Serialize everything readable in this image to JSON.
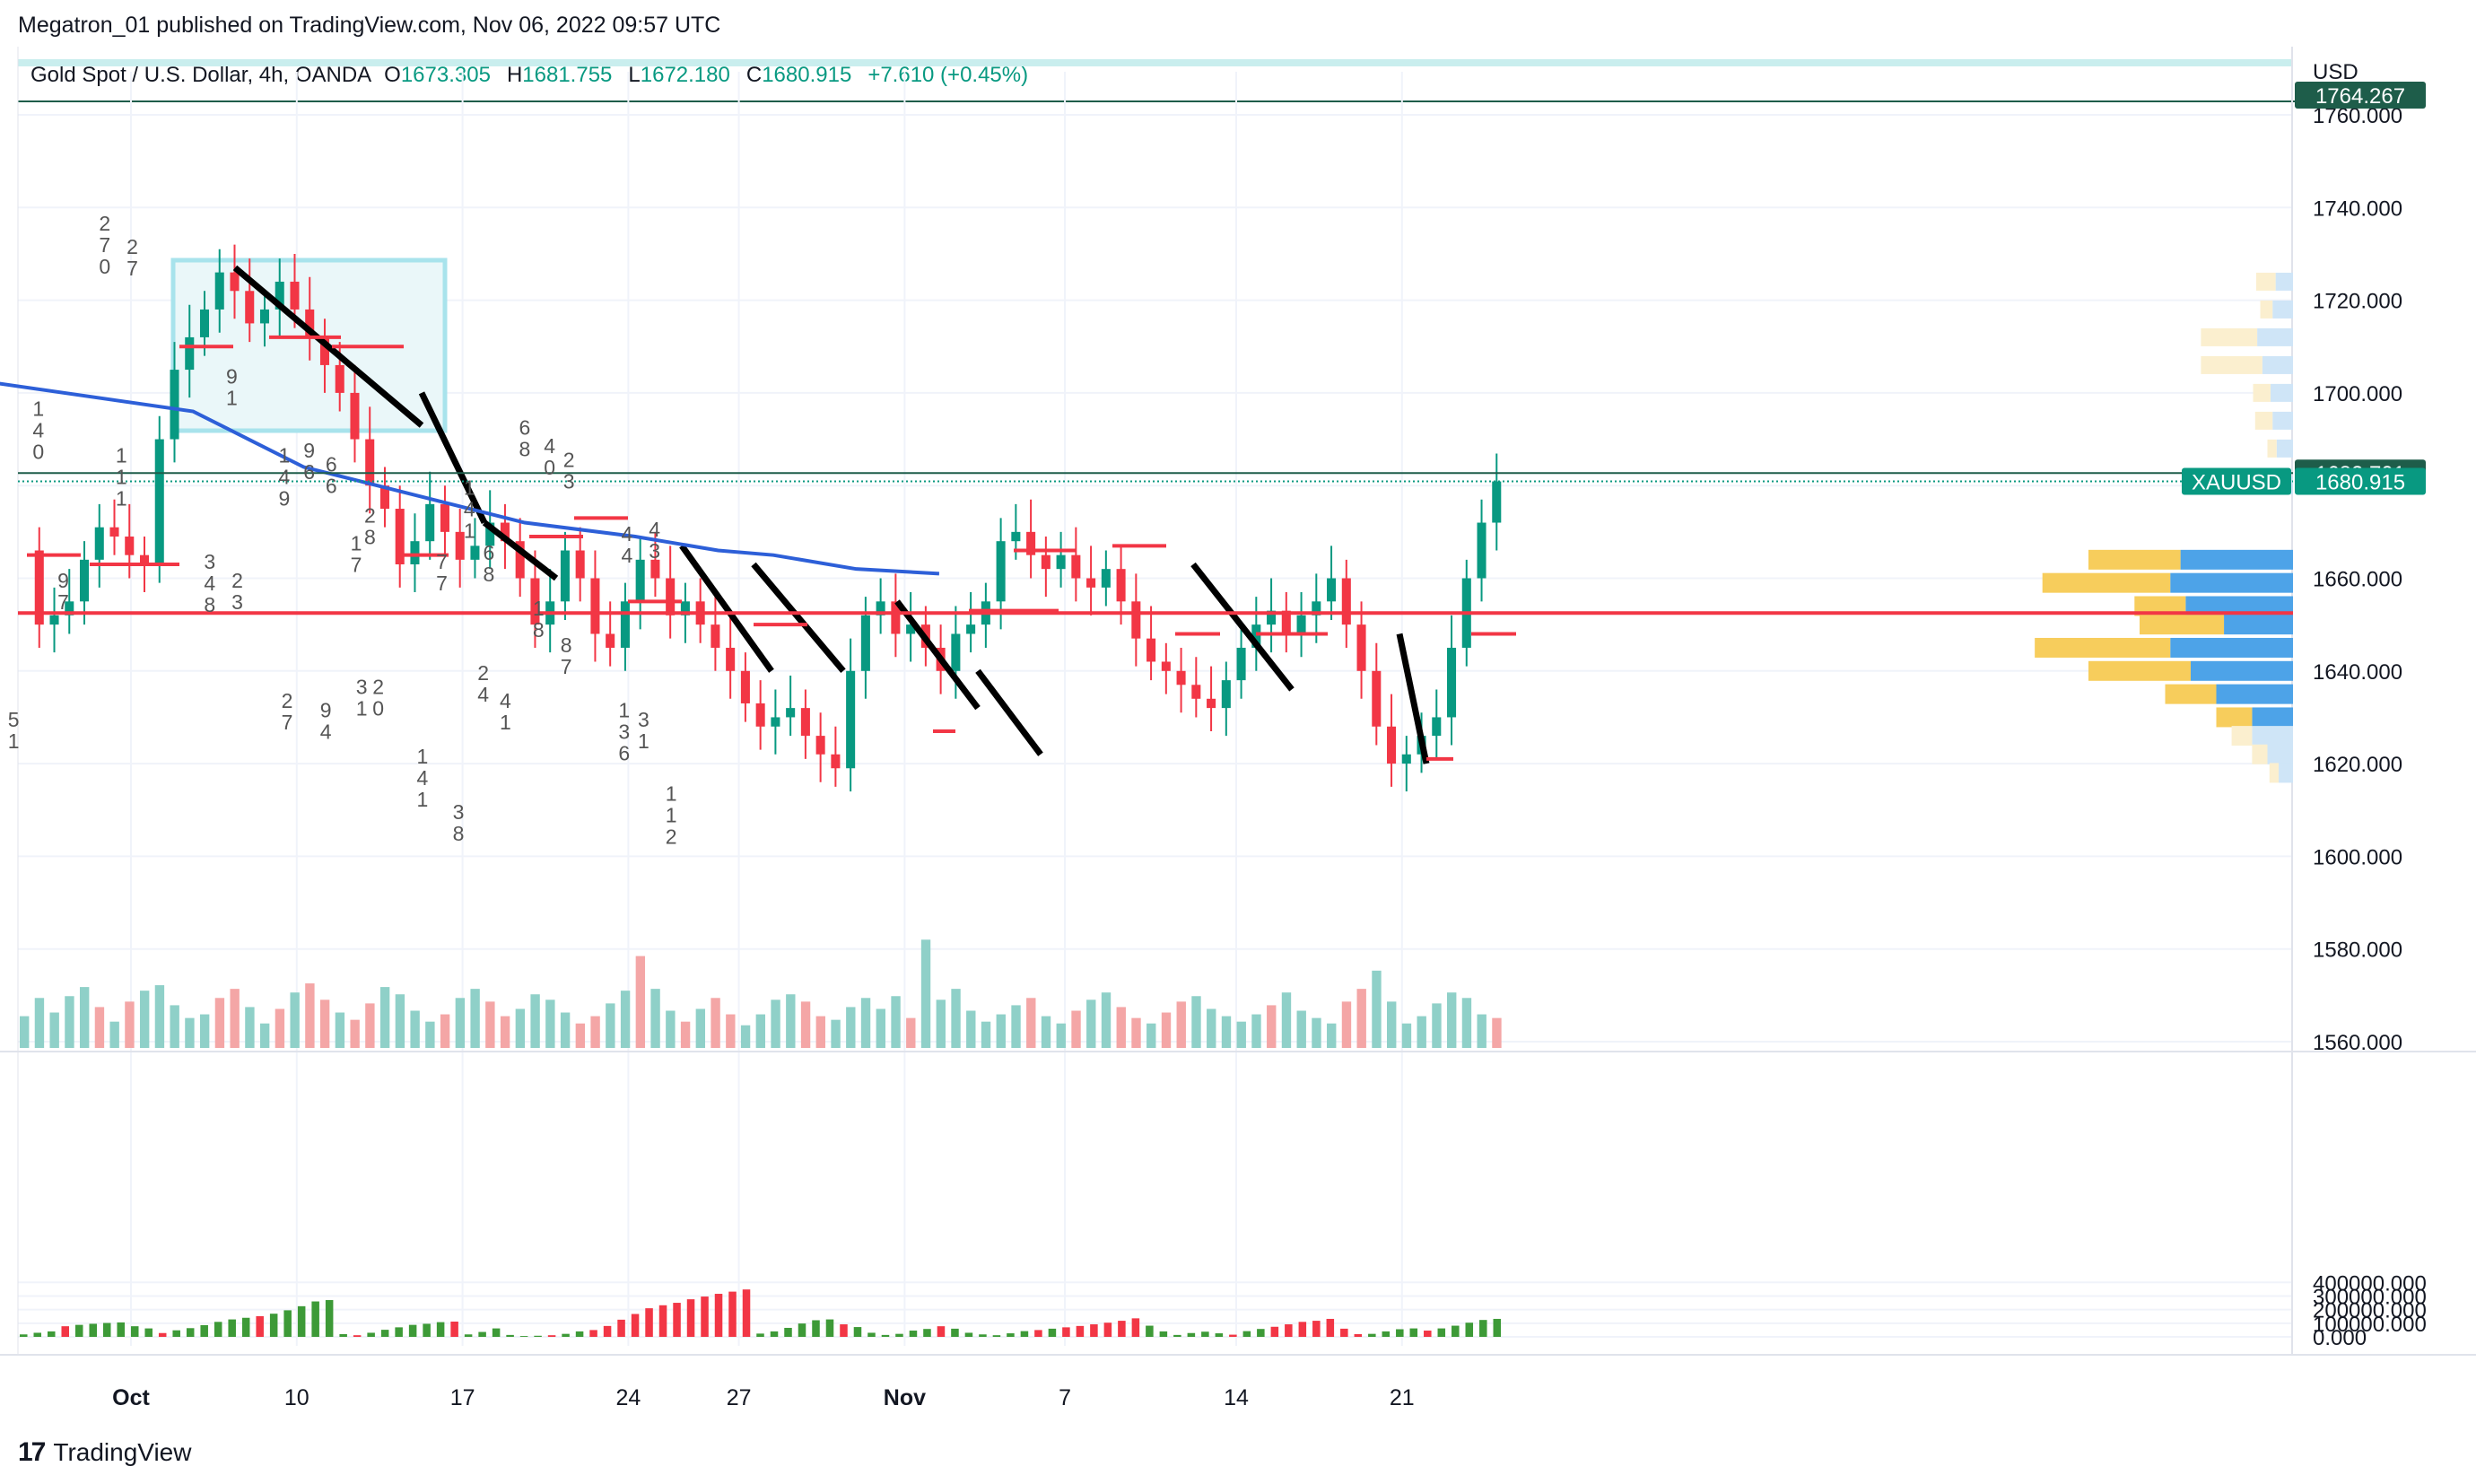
{
  "header": {
    "published": "Megatron_01 published on TradingView.com, Nov 06, 2022 09:57 UTC",
    "title": "Gold Spot / U.S. Dollar, 4h, OANDA",
    "o_label": "O",
    "o": "1673.305",
    "h_label": "H",
    "h": "1681.755",
    "l_label": "L",
    "l": "1672.180",
    "c_label": "C",
    "c": "1680.915",
    "change": "+7.610 (+0.45%)"
  },
  "footer": {
    "brand": "TradingView",
    "logo_glyph": "17"
  },
  "chart_data": [
    {
      "type": "candlestick",
      "symbol": "XAUUSD",
      "currency": "USD",
      "x_ticks": [
        "Oct",
        "10",
        "17",
        "24",
        "27",
        "Nov",
        "7",
        "14",
        "21"
      ],
      "y_ticks": [
        "1560.000",
        "1580.000",
        "1600.000",
        "1620.000",
        "1640.000",
        "1660.000",
        "1680.000",
        "1700.000",
        "1720.000",
        "1740.000",
        "1760.000"
      ],
      "ylim": [
        1560,
        1770
      ],
      "price_labels": [
        {
          "text": "1764.267",
          "value": 1764.267,
          "color": "#1e5d4a"
        },
        {
          "text": "1682.701",
          "value": 1682.701,
          "color": "#1e5d4a"
        },
        {
          "text": "1680.915",
          "value": 1680.915,
          "color": "#089981",
          "tag": "XAUUSD"
        }
      ],
      "red_hline": 1652.5,
      "close_path": [
        1666,
        1650,
        1652,
        1655,
        1664,
        1671,
        1669,
        1665,
        1663,
        1690,
        1705,
        1712,
        1718,
        1726,
        1722,
        1715,
        1718,
        1724,
        1718,
        1712,
        1706,
        1700,
        1690,
        1680,
        1675,
        1663,
        1668,
        1676,
        1670,
        1664,
        1667,
        1672,
        1668,
        1660,
        1650,
        1655,
        1666,
        1660,
        1648,
        1645,
        1655,
        1664,
        1660,
        1652,
        1655,
        1650,
        1645,
        1640,
        1633,
        1628,
        1630,
        1632,
        1626,
        1622,
        1619,
        1640,
        1652,
        1655,
        1648,
        1650,
        1645,
        1640,
        1648,
        1650,
        1655,
        1668,
        1670,
        1665,
        1662,
        1665,
        1660,
        1658,
        1662,
        1655,
        1647,
        1642,
        1640,
        1637,
        1634,
        1632,
        1638,
        1645,
        1650,
        1653,
        1648,
        1652,
        1655,
        1660,
        1650,
        1640,
        1628,
        1620,
        1622,
        1626,
        1630,
        1645,
        1660,
        1672,
        1680.9
      ],
      "moving_average": [
        {
          "d": 0,
          "v": 1702
        },
        {
          "d": 7,
          "v": 1696
        },
        {
          "d": 9,
          "v": 1690
        },
        {
          "d": 11,
          "v": 1684
        },
        {
          "d": 15,
          "v": 1678
        },
        {
          "d": 19,
          "v": 1672
        },
        {
          "d": 23,
          "v": 1669
        },
        {
          "d": 26,
          "v": 1666
        },
        {
          "d": 28,
          "v": 1665
        },
        {
          "d": 31,
          "v": 1662
        },
        {
          "d": 34,
          "v": 1661
        }
      ],
      "volume_scale": [
        1540,
        1620
      ],
      "volume": [
        28,
        48,
        32,
        50,
        60,
        38,
        22,
        44,
        56,
        62,
        40,
        26,
        30,
        48,
        58,
        38,
        20,
        36,
        54,
        64,
        46,
        32,
        24,
        42,
        60,
        52,
        34,
        22,
        30,
        48,
        58,
        44,
        28,
        36,
        52,
        46,
        32,
        20,
        28,
        42,
        56,
        94,
        58,
        34,
        22,
        36,
        48,
        30,
        18,
        30,
        46,
        52,
        44,
        28,
        24,
        38,
        48,
        36,
        50,
        26,
        112,
        46,
        58,
        34,
        22,
        30,
        40,
        48,
        28,
        20,
        34,
        46,
        54,
        38,
        26,
        20,
        32,
        44,
        50,
        36,
        28,
        22,
        30,
        40,
        54,
        34,
        26,
        20,
        44,
        58,
        78,
        44,
        20,
        28,
        42,
        54,
        48,
        30,
        26
      ],
      "tpo_numbers": [
        {
          "d": 1.4,
          "v": 1695,
          "text": "1\n4\n0"
        },
        {
          "d": 2.3,
          "v": 1658,
          "text": "9\n7"
        },
        {
          "d": 0.5,
          "v": 1628,
          "text": "5\n1"
        },
        {
          "d": 3.8,
          "v": 1735,
          "text": "2\n7\n0"
        },
        {
          "d": 4.8,
          "v": 1730,
          "text": "2\n7"
        },
        {
          "d": 4.4,
          "v": 1685,
          "text": "1\n1\n1"
        },
        {
          "d": 8.4,
          "v": 1702,
          "text": "9\n1"
        },
        {
          "d": 7.6,
          "v": 1662,
          "text": "3\n4\n8"
        },
        {
          "d": 8.6,
          "v": 1658,
          "text": "2\n3"
        },
        {
          "d": 10.3,
          "v": 1685,
          "text": "1\n4\n9"
        },
        {
          "d": 11.2,
          "v": 1686,
          "text": "9\n6"
        },
        {
          "d": 10.4,
          "v": 1632,
          "text": "2\n7"
        },
        {
          "d": 12.0,
          "v": 1683,
          "text": "6\n6"
        },
        {
          "d": 12.9,
          "v": 1666,
          "text": "1\n7"
        },
        {
          "d": 13.4,
          "v": 1672,
          "text": "2\n8"
        },
        {
          "d": 11.8,
          "v": 1630,
          "text": "9\n4"
        },
        {
          "d": 13.1,
          "v": 1635,
          "text": "3\n1"
        },
        {
          "d": 13.7,
          "v": 1635,
          "text": "2\n0"
        },
        {
          "d": 15.3,
          "v": 1620,
          "text": "1\n4\n1"
        },
        {
          "d": 16.0,
          "v": 1662,
          "text": "7\n7"
        },
        {
          "d": 16.6,
          "v": 1608,
          "text": "3\n8"
        },
        {
          "d": 17.0,
          "v": 1678,
          "text": "1\n4\n1"
        },
        {
          "d": 17.7,
          "v": 1664,
          "text": "6\n8"
        },
        {
          "d": 17.5,
          "v": 1638,
          "text": "2\n4"
        },
        {
          "d": 18.3,
          "v": 1632,
          "text": "4\n1"
        },
        {
          "d": 19.0,
          "v": 1691,
          "text": "6\n8"
        },
        {
          "d": 19.9,
          "v": 1687,
          "text": "4\n0"
        },
        {
          "d": 19.5,
          "v": 1652,
          "text": "1\n8"
        },
        {
          "d": 20.6,
          "v": 1684,
          "text": "2\n3"
        },
        {
          "d": 20.5,
          "v": 1644,
          "text": "8\n7"
        },
        {
          "d": 22.7,
          "v": 1668,
          "text": "4\n4"
        },
        {
          "d": 23.7,
          "v": 1669,
          "text": "4\n3"
        },
        {
          "d": 22.6,
          "v": 1630,
          "text": "1\n3\n6"
        },
        {
          "d": 23.3,
          "v": 1628,
          "text": "3\n1"
        },
        {
          "d": 24.3,
          "v": 1612,
          "text": "1\n1\n2"
        }
      ],
      "volume_profile": [
        {
          "v": 1724,
          "buy": 38,
          "sell": 34
        },
        {
          "v": 1718,
          "buy": 24,
          "sell": 40
        },
        {
          "v": 1712,
          "buy": 110,
          "sell": 70
        },
        {
          "v": 1706,
          "buy": 120,
          "sell": 60
        },
        {
          "v": 1700,
          "buy": 34,
          "sell": 44
        },
        {
          "v": 1694,
          "buy": 34,
          "sell": 40
        },
        {
          "v": 1688,
          "buy": 18,
          "sell": 32
        },
        {
          "v": 1680,
          "buy": 60,
          "sell": 60
        },
        {
          "v": 1664,
          "buy": 180,
          "sell": 220
        },
        {
          "v": 1659,
          "buy": 250,
          "sell": 240
        },
        {
          "v": 1654,
          "buy": 100,
          "sell": 210
        },
        {
          "v": 1650,
          "buy": 165,
          "sell": 135
        },
        {
          "v": 1645,
          "buy": 265,
          "sell": 240
        },
        {
          "v": 1640,
          "buy": 200,
          "sell": 200
        },
        {
          "v": 1635,
          "buy": 100,
          "sell": 150
        },
        {
          "v": 1630,
          "buy": 70,
          "sell": 80
        },
        {
          "v": 1626,
          "buy": 40,
          "sell": 80
        },
        {
          "v": 1622,
          "buy": 30,
          "sell": 50
        },
        {
          "v": 1618,
          "buy": 18,
          "sell": 28
        }
      ]
    },
    {
      "type": "bar",
      "title": "",
      "y_ticks": [
        "0.000",
        "100000.000",
        "200000.000",
        "300000.000",
        "400000.000"
      ],
      "ylim": [
        0,
        400000
      ],
      "values": [
        18000,
        30000,
        40000,
        78000,
        88000,
        96000,
        102000,
        106000,
        78000,
        62000,
        28000,
        48000,
        64000,
        86000,
        110000,
        128000,
        140000,
        152000,
        170000,
        195000,
        225000,
        260000,
        270000,
        20000,
        12000,
        30000,
        52000,
        70000,
        88000,
        96000,
        108000,
        112000,
        18000,
        36000,
        62000,
        14000,
        6000,
        8000,
        12000,
        22000,
        40000,
        50000,
        80000,
        126000,
        168000,
        210000,
        232000,
        250000,
        276000,
        296000,
        316000,
        332000,
        348000,
        24000,
        40000,
        66000,
        98000,
        122000,
        128000,
        92000,
        72000,
        30000,
        14000,
        22000,
        46000,
        58000,
        78000,
        60000,
        30000,
        18000,
        12000,
        26000,
        42000,
        50000,
        60000,
        70000,
        80000,
        92000,
        104000,
        118000,
        136000,
        82000,
        40000,
        14000,
        28000,
        38000,
        26000,
        16000,
        42000,
        58000,
        74000,
        92000,
        110000,
        118000,
        132000,
        60000,
        20000,
        22000,
        40000,
        56000,
        62000,
        46000,
        62000,
        82000,
        104000,
        124000,
        132000
      ]
    }
  ]
}
